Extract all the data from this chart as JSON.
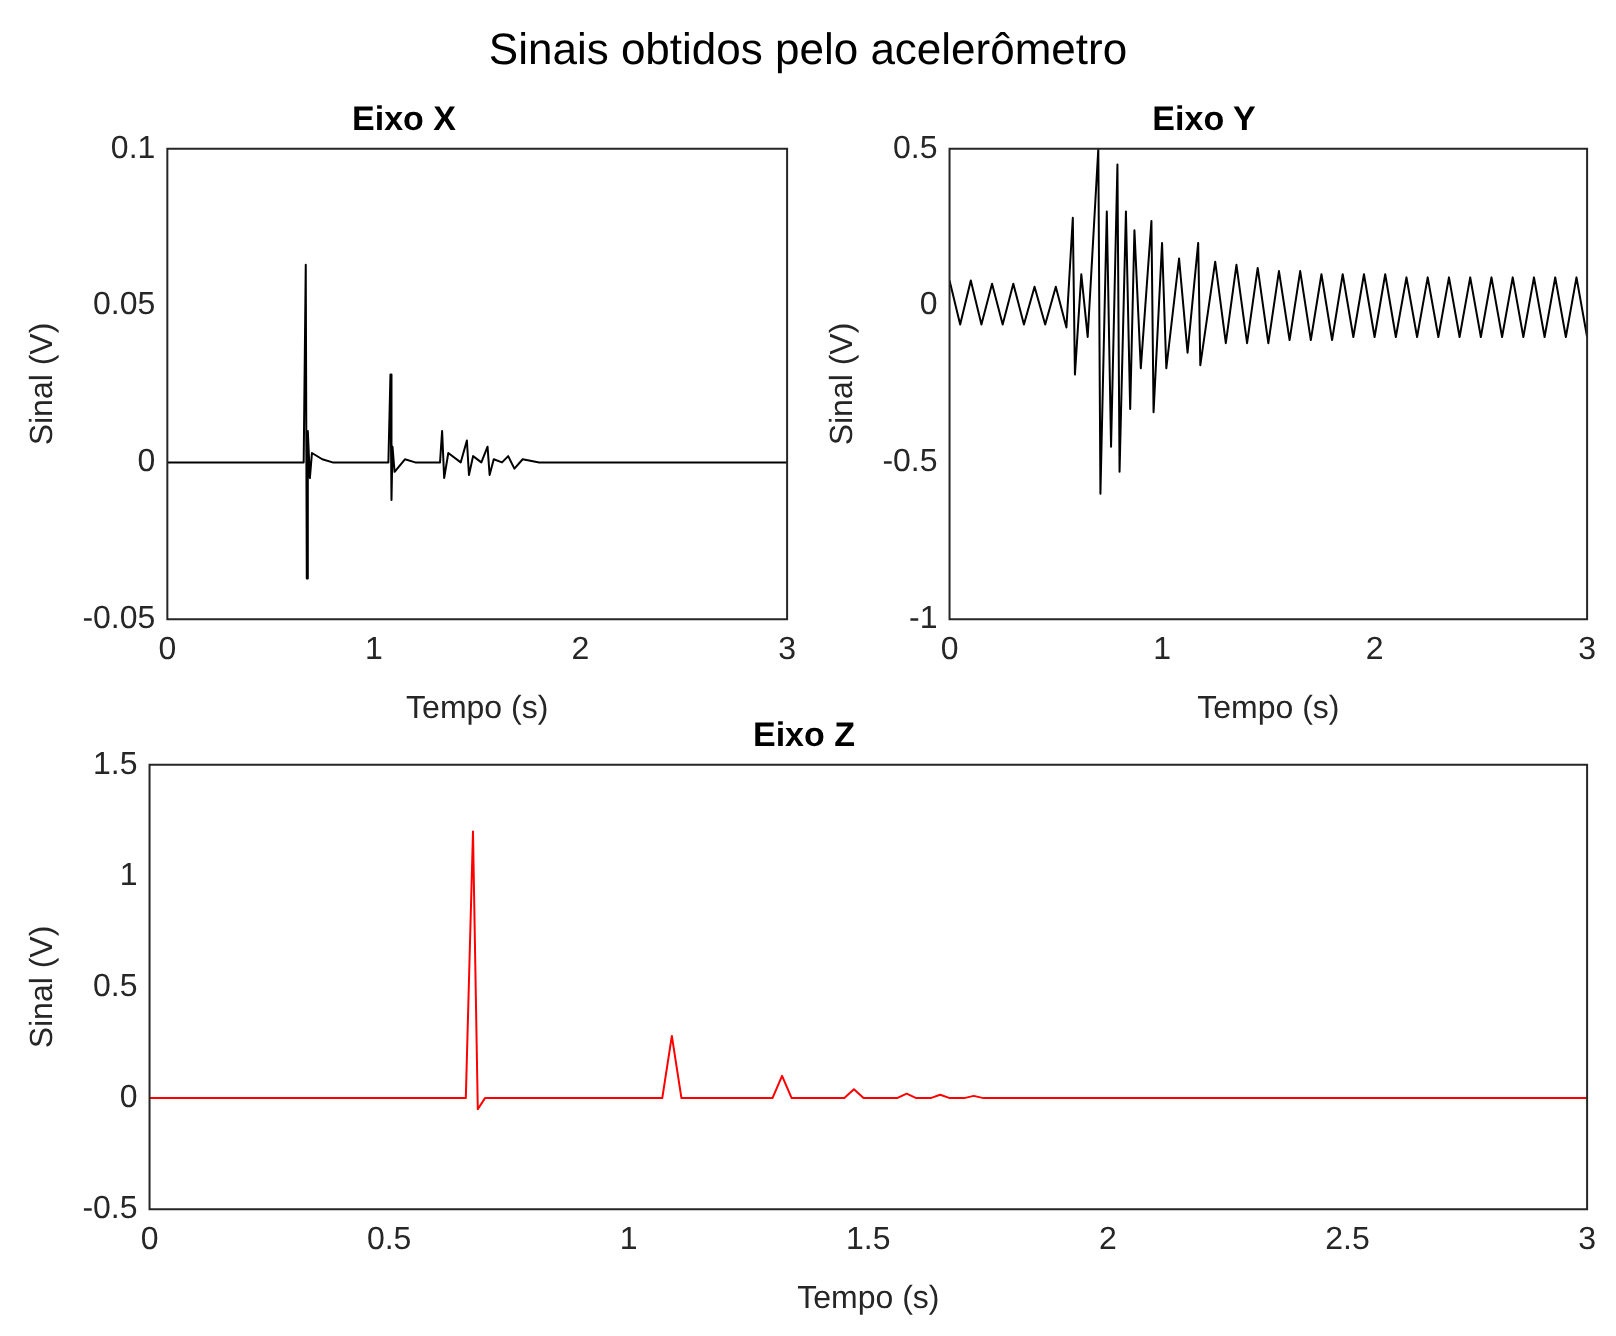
{
  "chart_data": [
    {
      "type": "other",
      "title": "Sinais obtidos pelo acelerômetro"
    },
    {
      "type": "line",
      "title": "Eixo X",
      "xlabel": "Tempo (s)",
      "ylabel": "Sinal (V)",
      "xlim": [
        0,
        3
      ],
      "xticks": [
        0,
        1,
        2,
        3
      ],
      "ylim": [
        -0.05,
        0.1
      ],
      "yticks": [
        -0.05,
        0,
        0.05,
        0.1
      ],
      "grid": false,
      "legend": false,
      "marker": "none",
      "x": [
        0,
        0.3,
        0.6,
        0.66,
        0.67,
        0.675,
        0.68,
        0.69,
        0.7,
        0.75,
        0.8,
        1.07,
        1.08,
        1.085,
        1.09,
        1.1,
        1.15,
        1.2,
        1.32,
        1.33,
        1.34,
        1.36,
        1.42,
        1.45,
        1.46,
        1.48,
        1.52,
        1.55,
        1.56,
        1.58,
        1.62,
        1.65,
        1.68,
        1.72,
        1.8,
        3
      ],
      "series": [
        {
          "color": "#000000",
          "values": [
            0,
            0,
            0,
            0,
            0.063,
            -0.037,
            0.01,
            -0.005,
            0.003,
            0.001,
            0,
            0,
            0.028,
            -0.012,
            0.005,
            -0.003,
            0.001,
            0,
            0,
            0.01,
            -0.005,
            0.003,
            0,
            0.007,
            -0.004,
            0.002,
            0,
            0.005,
            -0.004,
            0.001,
            0,
            0.002,
            -0.002,
            0.001,
            0,
            0
          ]
        }
      ]
    },
    {
      "type": "line",
      "title": "Eixo Y",
      "xlabel": "Tempo (s)",
      "ylabel": "Sinal (V)",
      "xlim": [
        0,
        3
      ],
      "xticks": [
        0,
        1,
        2,
        3
      ],
      "ylim": [
        -1,
        0.5
      ],
      "yticks": [
        -1,
        -0.5,
        0,
        0.5
      ],
      "grid": false,
      "legend": false,
      "marker": "none",
      "x": [
        0,
        0.05,
        0.1,
        0.15,
        0.2,
        0.25,
        0.3,
        0.35,
        0.4,
        0.45,
        0.5,
        0.55,
        0.58,
        0.59,
        0.62,
        0.65,
        0.7,
        0.71,
        0.74,
        0.76,
        0.79,
        0.8,
        0.83,
        0.85,
        0.87,
        0.9,
        0.95,
        0.96,
        1.0,
        1.02,
        1.08,
        1.12,
        1.17,
        1.18,
        1.25,
        1.3,
        1.35,
        1.4,
        1.45,
        1.5,
        1.55,
        1.6,
        1.65,
        1.7,
        1.75,
        1.8,
        1.85,
        1.9,
        1.95,
        2.0,
        2.05,
        2.1,
        2.15,
        2.2,
        2.25,
        2.3,
        2.35,
        2.4,
        2.45,
        2.5,
        2.55,
        2.6,
        2.65,
        2.7,
        2.75,
        2.8,
        2.85,
        2.9,
        2.95,
        3.0
      ],
      "series": [
        {
          "color": "#000000",
          "values": [
            0.08,
            -0.06,
            0.08,
            -0.06,
            0.07,
            -0.06,
            0.07,
            -0.06,
            0.06,
            -0.06,
            0.06,
            -0.07,
            0.28,
            -0.22,
            0.1,
            -0.1,
            0.5,
            -0.6,
            0.3,
            -0.45,
            0.45,
            -0.53,
            0.3,
            -0.33,
            0.24,
            -0.2,
            0.27,
            -0.34,
            0.2,
            -0.2,
            0.15,
            -0.15,
            0.2,
            -0.19,
            0.14,
            -0.12,
            0.13,
            -0.12,
            0.12,
            -0.12,
            0.11,
            -0.11,
            0.11,
            -0.11,
            0.1,
            -0.11,
            0.1,
            -0.1,
            0.1,
            -0.1,
            0.1,
            -0.1,
            0.09,
            -0.1,
            0.09,
            -0.1,
            0.09,
            -0.1,
            0.09,
            -0.1,
            0.09,
            -0.1,
            0.09,
            -0.1,
            0.09,
            -0.1,
            0.09,
            -0.1,
            0.09,
            -0.1
          ]
        }
      ]
    },
    {
      "type": "line",
      "title": "Eixo Z",
      "xlabel": "Tempo (s)",
      "ylabel": "Sinal (V)",
      "xlim": [
        0,
        3
      ],
      "xticks": [
        0,
        0.5,
        1,
        1.5,
        2,
        2.5,
        3
      ],
      "ylim": [
        -0.5,
        1.5
      ],
      "yticks": [
        -0.5,
        0,
        0.5,
        1,
        1.5
      ],
      "grid": false,
      "legend": false,
      "marker": "none",
      "x": [
        0,
        0.66,
        0.675,
        0.685,
        0.7,
        1.07,
        1.09,
        1.11,
        1.3,
        1.32,
        1.34,
        1.45,
        1.47,
        1.49,
        1.56,
        1.58,
        1.6,
        1.63,
        1.65,
        1.67,
        1.7,
        1.72,
        1.74,
        3
      ],
      "series": [
        {
          "color": "#ff0000",
          "values": [
            0,
            0,
            1.2,
            -0.05,
            0,
            0,
            0.28,
            0,
            0,
            0.1,
            0,
            0,
            0.04,
            0,
            0,
            0.02,
            0,
            0,
            0.015,
            0,
            0,
            0.01,
            0,
            0
          ]
        }
      ]
    }
  ]
}
